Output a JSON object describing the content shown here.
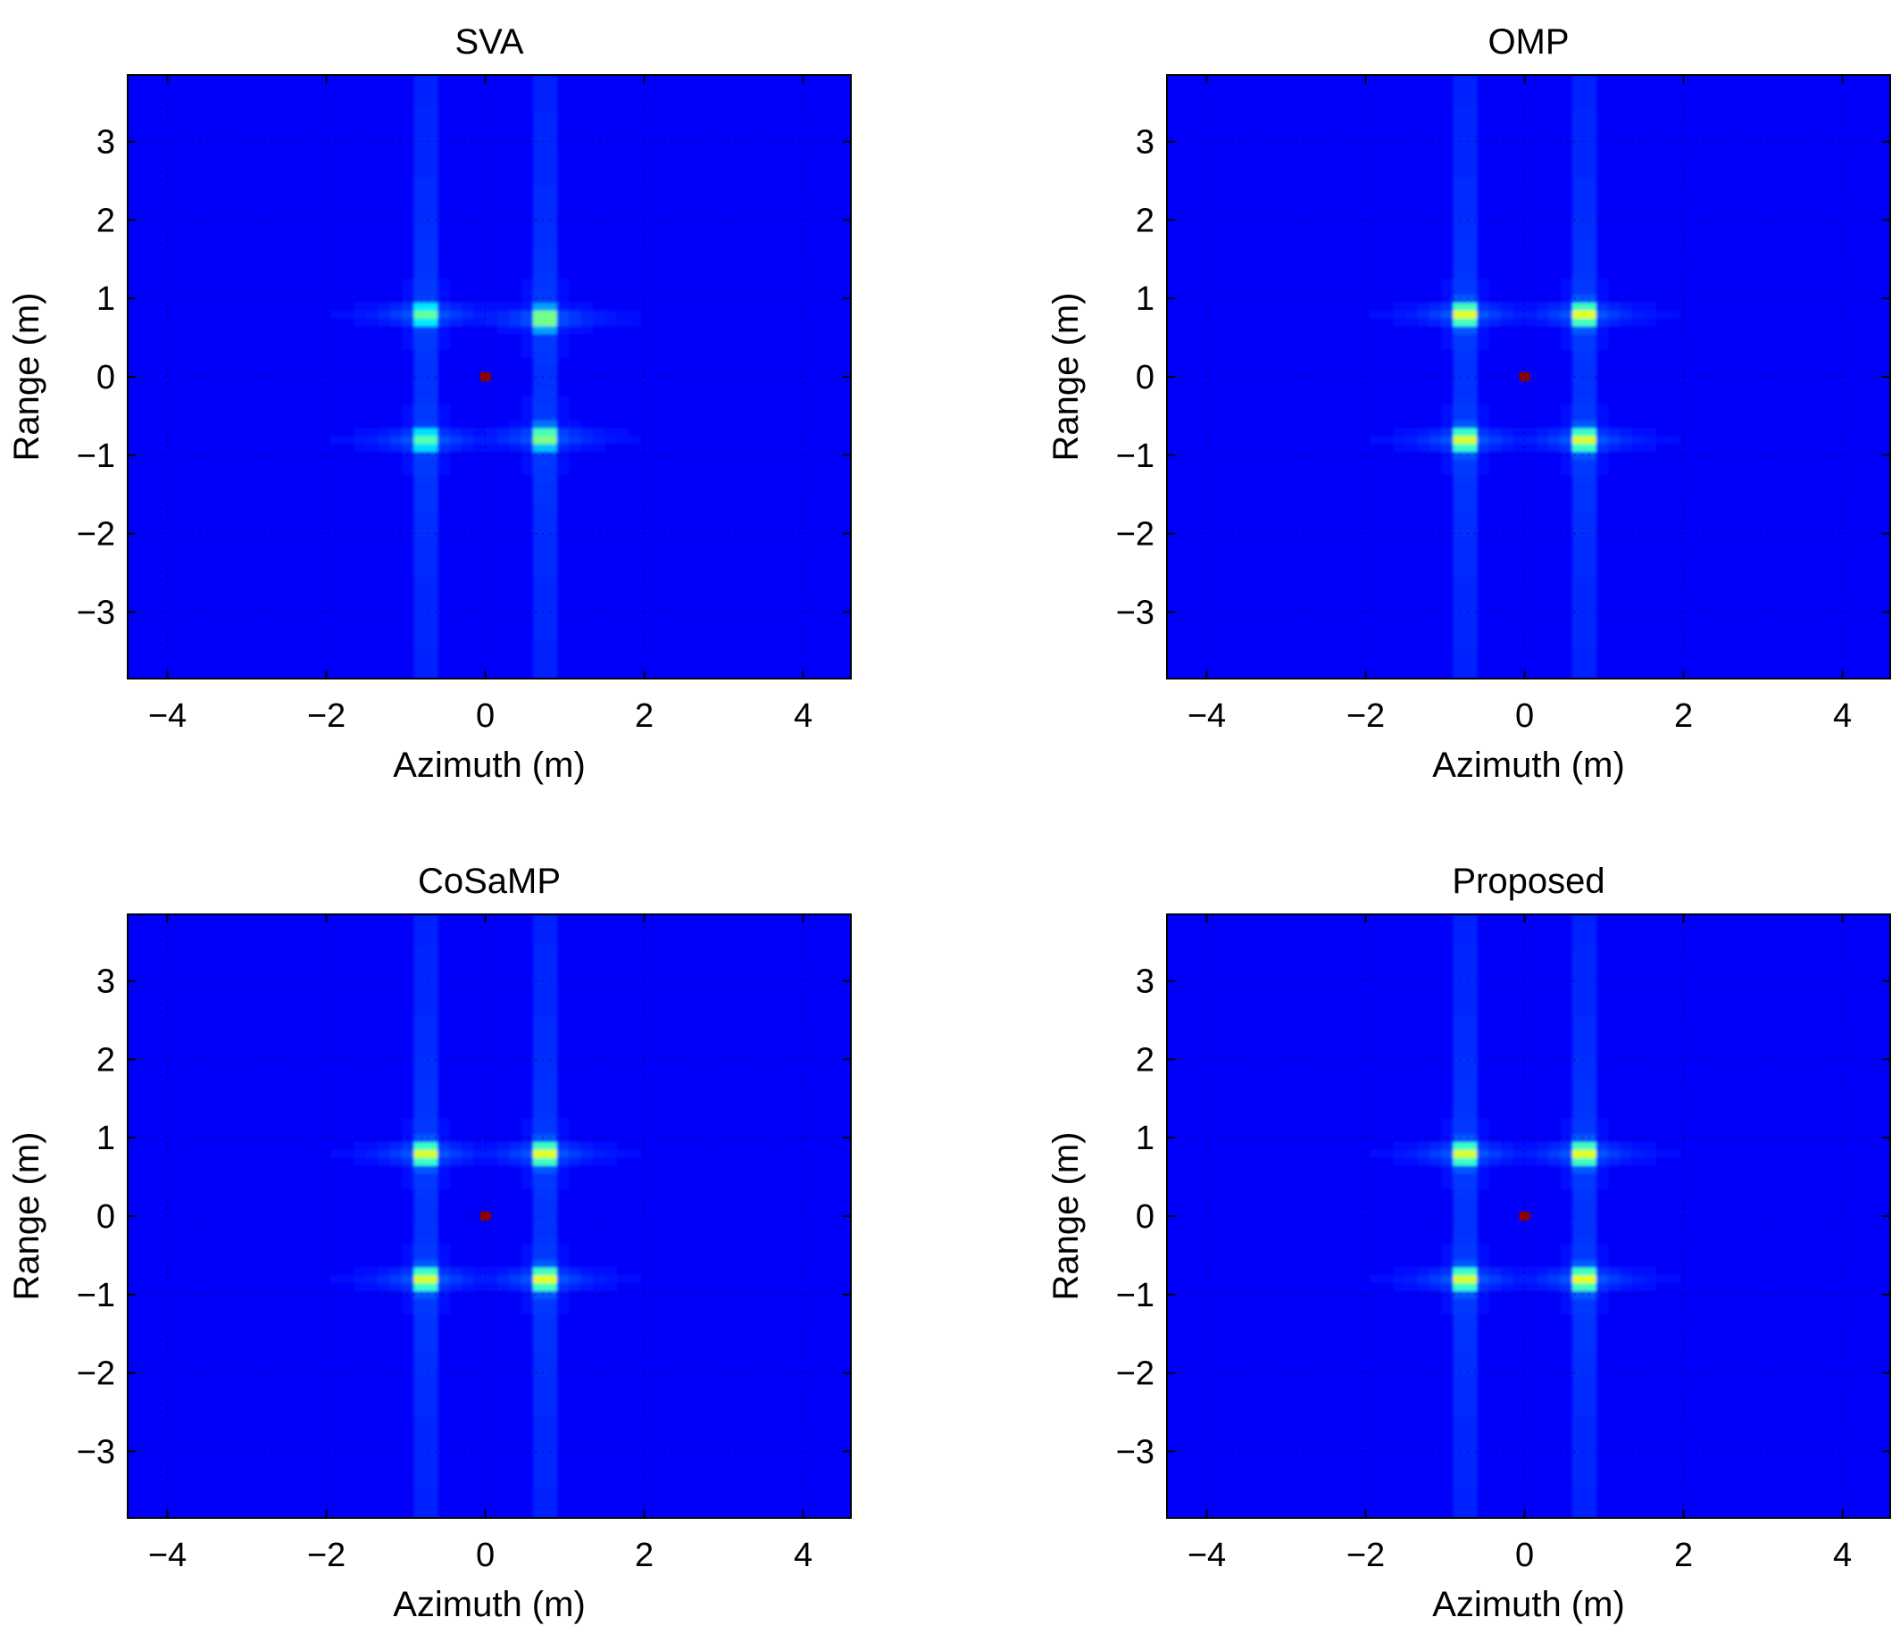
{
  "chart_data": [
    {
      "type": "heatmap",
      "title": "SVA",
      "xlabel": "Azimuth (m)",
      "ylabel": "Range (m)",
      "xlim": [
        -4.5,
        4.6
      ],
      "ylim": [
        -3.85,
        3.85
      ],
      "xticks": [
        -4,
        -2,
        0,
        2,
        4
      ],
      "yticks": [
        -3,
        -2,
        -1,
        0,
        1,
        2,
        3
      ],
      "grid": true,
      "colormap": "jet",
      "background_level": 0.12,
      "targets": [
        {
          "x": -0.75,
          "y": 0.8,
          "level": 0.62
        },
        {
          "x": 0.75,
          "y": 0.75,
          "level": 0.7
        },
        {
          "x": -0.75,
          "y": -0.8,
          "level": 0.6
        },
        {
          "x": 0.75,
          "y": -0.77,
          "level": 0.68
        }
      ],
      "center_marker": {
        "x": 0,
        "y": 0
      }
    },
    {
      "type": "heatmap",
      "title": "OMP",
      "xlabel": "Azimuth (m)",
      "ylabel": "Range (m)",
      "xlim": [
        -4.5,
        4.6
      ],
      "ylim": [
        -3.85,
        3.85
      ],
      "xticks": [
        -4,
        -2,
        0,
        2,
        4
      ],
      "yticks": [
        -3,
        -2,
        -1,
        0,
        1,
        2,
        3
      ],
      "grid": true,
      "colormap": "jet",
      "background_level": 0.12,
      "targets": [
        {
          "x": -0.75,
          "y": 0.8,
          "level": 0.8
        },
        {
          "x": 0.75,
          "y": 0.8,
          "level": 0.8
        },
        {
          "x": -0.75,
          "y": -0.8,
          "level": 0.78
        },
        {
          "x": 0.75,
          "y": -0.8,
          "level": 0.78
        }
      ],
      "center_marker": {
        "x": 0,
        "y": 0
      }
    },
    {
      "type": "heatmap",
      "title": "CoSaMP",
      "xlabel": "Azimuth (m)",
      "ylabel": "Range (m)",
      "xlim": [
        -4.5,
        4.6
      ],
      "ylim": [
        -3.85,
        3.85
      ],
      "xticks": [
        -4,
        -2,
        0,
        2,
        4
      ],
      "yticks": [
        -3,
        -2,
        -1,
        0,
        1,
        2,
        3
      ],
      "grid": true,
      "colormap": "jet",
      "background_level": 0.12,
      "targets": [
        {
          "x": -0.75,
          "y": 0.8,
          "level": 0.78
        },
        {
          "x": 0.75,
          "y": 0.8,
          "level": 0.8
        },
        {
          "x": -0.75,
          "y": -0.8,
          "level": 0.78
        },
        {
          "x": 0.75,
          "y": -0.8,
          "level": 0.8
        }
      ],
      "center_marker": {
        "x": 0,
        "y": 0
      }
    },
    {
      "type": "heatmap",
      "title": "Proposed",
      "xlabel": "Azimuth (m)",
      "ylabel": "Range (m)",
      "xlim": [
        -4.5,
        4.6
      ],
      "ylim": [
        -3.85,
        3.85
      ],
      "xticks": [
        -4,
        -2,
        0,
        2,
        4
      ],
      "yticks": [
        -3,
        -2,
        -1,
        0,
        1,
        2,
        3
      ],
      "grid": true,
      "colormap": "jet",
      "background_level": 0.12,
      "targets": [
        {
          "x": -0.75,
          "y": 0.8,
          "level": 0.78
        },
        {
          "x": 0.75,
          "y": 0.8,
          "level": 0.8
        },
        {
          "x": -0.75,
          "y": -0.8,
          "level": 0.78
        },
        {
          "x": 0.75,
          "y": -0.8,
          "level": 0.8
        }
      ],
      "center_marker": {
        "x": 0,
        "y": 0
      }
    }
  ]
}
